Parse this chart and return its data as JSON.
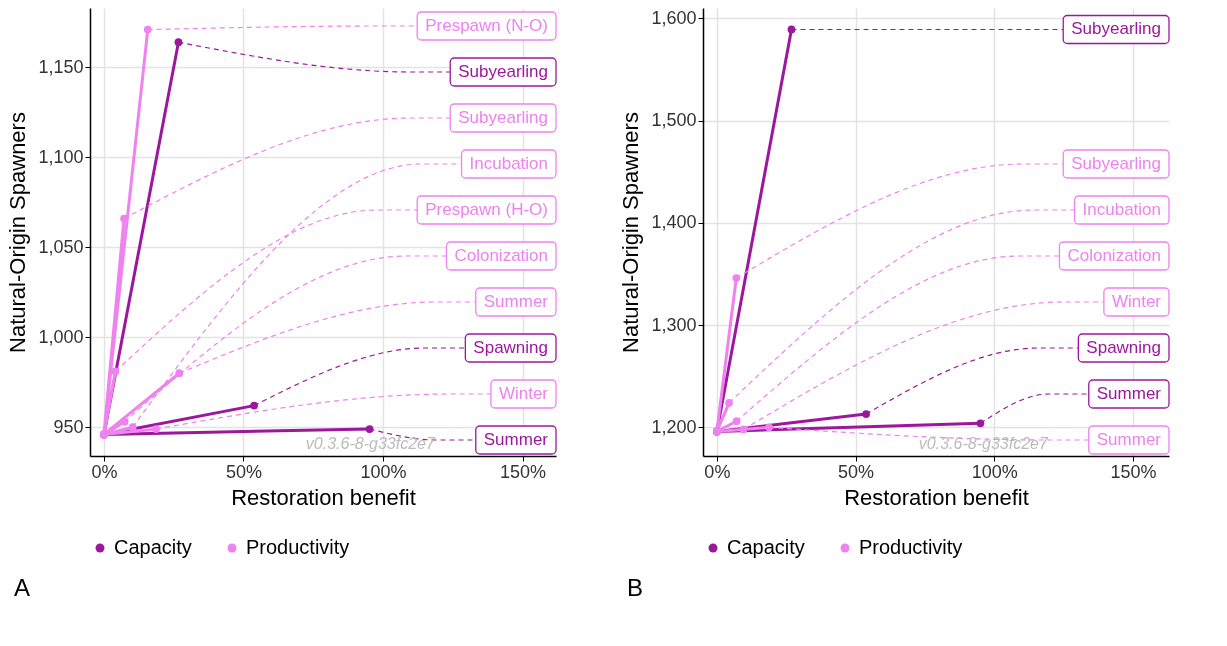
{
  "chart_data": [
    {
      "type": "line",
      "title": "A",
      "xlabel": "Restoration benefit",
      "ylabel": "Natural-Origin Spawners",
      "xlim": [
        -5,
        162
      ],
      "xticks": [
        {
          "value": 0,
          "label": "0%"
        },
        {
          "value": 50,
          "label": "50%"
        },
        {
          "value": 100,
          "label": "100%"
        },
        {
          "value": 150,
          "label": "150%"
        }
      ],
      "ylim": [
        934,
        1183
      ],
      "yticks": [
        950,
        {
          "value": 1000,
          "label": "1,000"
        },
        {
          "value": 1050,
          "label": "1,050"
        },
        {
          "value": 1100,
          "label": "1,100"
        },
        {
          "value": 1150,
          "label": "1,150"
        }
      ],
      "grid": true,
      "legend": "bottom",
      "marker": "circle",
      "series": [
        {
          "name": "Capacity",
          "color": "#9c179e",
          "x": [
            0,
            26.7,
            0,
            53.8,
            0,
            95.2
          ],
          "values": [
            946,
            1164,
            946,
            962,
            946,
            949
          ]
        },
        {
          "name": "Productivity",
          "color": "#ee82ee",
          "x": [
            0,
            15.7,
            0,
            7.2,
            0,
            4.1,
            0,
            27,
            0,
            18.7,
            0,
            7.4,
            0,
            10.3
          ],
          "values": [
            946,
            1171,
            946,
            1066,
            946,
            981,
            946,
            980,
            946,
            949,
            946,
            953,
            946,
            950
          ]
        }
      ],
      "annotations": [
        {
          "text": "Prespawn (N-O)",
          "x": 15.7,
          "y": 1171
        },
        {
          "text": "Subyearling",
          "x": 26.7,
          "y": 1164
        },
        {
          "text": "Subyearling",
          "x": 7.2,
          "y": 1066
        },
        {
          "text": "Incubation",
          "x": 10.3,
          "y": 950
        },
        {
          "text": "Prespawn (H-O)",
          "x": 4.1,
          "y": 981
        },
        {
          "text": "Colonization",
          "x": 7.4,
          "y": 953
        },
        {
          "text": "Summer",
          "x": 27,
          "y": 980
        },
        {
          "text": "Spawning",
          "x": 53.8,
          "y": 962
        },
        {
          "text": "Winter",
          "x": 18.7,
          "y": 949
        },
        {
          "text": "Summer",
          "x": 95.2,
          "y": 949
        },
        "v0.3.6-8-g33fc2e7"
      ]
    },
    {
      "type": "line",
      "title": "B",
      "xlabel": "Restoration benefit",
      "ylabel": "Natural-Origin Spawners",
      "xlim": [
        -5,
        163
      ],
      "xticks": [
        {
          "value": 0,
          "label": "0%"
        },
        {
          "value": 50,
          "label": "50%"
        },
        {
          "value": 100,
          "label": "100%"
        },
        {
          "value": 150,
          "label": "150%"
        }
      ],
      "ylim": [
        1172,
        1610
      ],
      "yticks": [
        {
          "value": 1200,
          "label": "1,200"
        },
        {
          "value": 1300,
          "label": "1,300"
        },
        {
          "value": 1400,
          "label": "1,400"
        },
        {
          "value": 1500,
          "label": "1,500"
        },
        {
          "value": 1600,
          "label": "1,600"
        }
      ],
      "grid": true,
      "legend": "bottom",
      "marker": "circle",
      "series": [
        {
          "name": "Capacity",
          "color": "#9c179e",
          "x": [
            0,
            26.9,
            0,
            53.8,
            0,
            95
          ],
          "values": [
            1196,
            1589,
            1196,
            1213,
            1196,
            1204
          ]
        },
        {
          "name": "Productivity",
          "color": "#ee82ee",
          "x": [
            0,
            7,
            0,
            4.4,
            0,
            7.1,
            0,
            9.6,
            0,
            18.8
          ],
          "values": [
            1196,
            1346,
            1196,
            1224,
            1196,
            1206,
            1196,
            1198,
            1196,
            1200
          ]
        }
      ],
      "annotations": [
        {
          "text": "Subyearling",
          "x": 26.9,
          "y": 1589
        },
        {
          "text": "Subyearling",
          "x": 7,
          "y": 1346
        },
        {
          "text": "Incubation",
          "x": 4.4,
          "y": 1224
        },
        {
          "text": "Colonization",
          "x": 7.1,
          "y": 1206
        },
        {
          "text": "Winter",
          "x": 9.6,
          "y": 1198
        },
        {
          "text": "Spawning",
          "x": 53.8,
          "y": 1213
        },
        {
          "text": "Summer",
          "x": 95,
          "y": 1204
        },
        {
          "text": "Summer",
          "x": 18.8,
          "y": 1200
        },
        "v0.3.6-8-g33fc2e7"
      ]
    }
  ]
}
